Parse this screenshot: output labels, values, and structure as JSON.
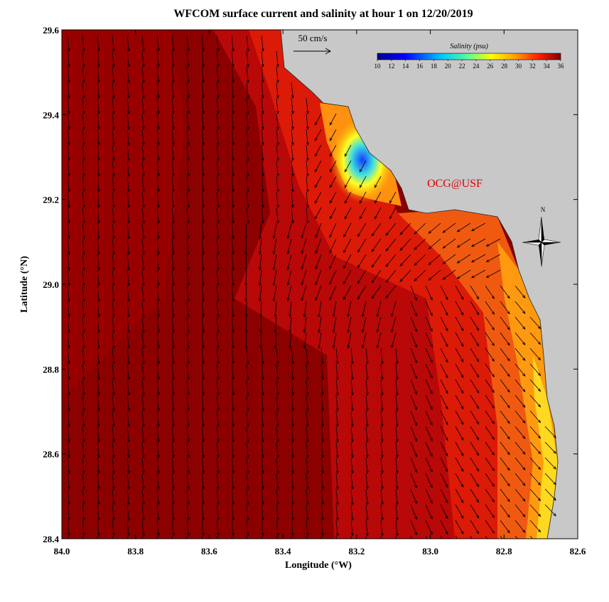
{
  "title": "WFCOM surface current and salinity at hour 1 on 12/20/2019",
  "xaxis": {
    "label": "Longitude (°W)",
    "lim": [
      84.0,
      82.6
    ],
    "ticks": [
      {
        "value": 84.0,
        "label": "84.0"
      },
      {
        "value": 83.8,
        "label": "83.8"
      },
      {
        "value": 83.6,
        "label": "83.6"
      },
      {
        "value": 83.4,
        "label": "83.4"
      },
      {
        "value": 83.2,
        "label": "83.2"
      },
      {
        "value": 83.0,
        "label": "83.0"
      },
      {
        "value": 82.8,
        "label": "82.8"
      },
      {
        "value": 82.6,
        "label": "82.6"
      }
    ]
  },
  "yaxis": {
    "label": "Latitude (°N)",
    "lim": [
      28.4,
      29.6
    ],
    "ticks": [
      28.4,
      28.6,
      28.8,
      {
        "value": 29.0,
        "label": "29.0"
      },
      29.2,
      29.4,
      29.6
    ]
  },
  "colorbar": {
    "title": "Salinity (psu)",
    "lim": [
      10,
      36
    ],
    "ticks": [
      10,
      12,
      14,
      16,
      18,
      20,
      22,
      24,
      26,
      28,
      30,
      32,
      34,
      36
    ]
  },
  "scale_arrow": "50 cm/s",
  "watermark": "OCG@USF",
  "compass": "N"
}
